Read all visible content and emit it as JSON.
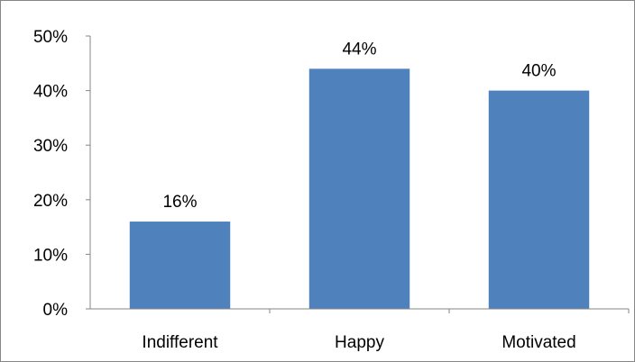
{
  "chart_data": {
    "type": "bar",
    "title": "",
    "xlabel": "",
    "ylabel": "",
    "categories": [
      "Indifferent",
      "Happy",
      "Motivated"
    ],
    "values": [
      16,
      44,
      40
    ],
    "data_labels": [
      "16%",
      "44%",
      "40%"
    ],
    "ylim": [
      0,
      50
    ],
    "yticks": [
      0,
      10,
      20,
      30,
      40,
      50
    ],
    "ytick_labels": [
      "0%",
      "10%",
      "20%",
      "30%",
      "40%",
      "50%"
    ],
    "grid": false,
    "legend": "none",
    "bar_color": "#4f81bd",
    "axis_color": "#868686"
  }
}
